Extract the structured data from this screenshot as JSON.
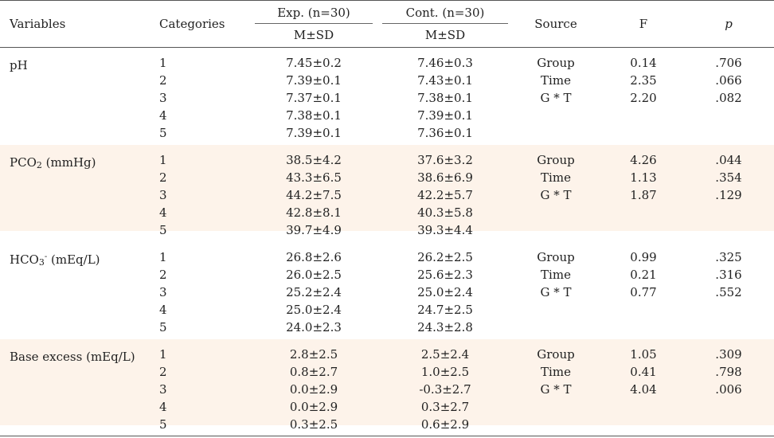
{
  "header": {
    "variables": "Variables",
    "categories": "Categories",
    "exp": "Exp. (n=30)",
    "cont": "Cont. (n=30)",
    "msd_exp": "M±SD",
    "msd_cont": "M±SD",
    "source": "Source",
    "f": "F",
    "p": "p"
  },
  "groups": [
    {
      "var_main": "pH",
      "var_sub": "",
      "var_sup": "",
      "var_rest": "",
      "categories": [
        "1",
        "2",
        "3",
        "4",
        "5"
      ],
      "exp": [
        "7.45±0.2",
        "7.39±0.1",
        "7.37±0.1",
        "7.38±0.1",
        "7.39±0.1"
      ],
      "cont": [
        "7.46±0.3",
        "7.43±0.1",
        "7.38±0.1",
        "7.39±0.1",
        "7.36±0.1"
      ],
      "source": [
        "Group",
        "Time",
        "G * T"
      ],
      "f": [
        "0.14",
        "2.35",
        "2.20"
      ],
      "p": [
        ".706",
        ".066",
        ".082"
      ]
    },
    {
      "var_main": "PCO",
      "var_sub": "2",
      "var_sup": "",
      "var_rest": " (mmHg)",
      "categories": [
        "1",
        "2",
        "3",
        "4",
        "5"
      ],
      "exp": [
        "38.5±4.2",
        "43.3±6.5",
        "44.2±7.5",
        "42.8±8.1",
        "39.7±4.9"
      ],
      "cont": [
        "37.6±3.2",
        "38.6±6.9",
        "42.2±5.7",
        "40.3±5.8",
        "39.3±4.4"
      ],
      "source": [
        "Group",
        "Time",
        "G * T"
      ],
      "f": [
        "4.26",
        "1.13",
        "1.87"
      ],
      "p": [
        ".044",
        ".354",
        ".129"
      ]
    },
    {
      "var_main": "HCO",
      "var_sub": "3",
      "var_sup": "-",
      "var_rest": " (mEq/L)",
      "categories": [
        "1",
        "2",
        "3",
        "4",
        "5"
      ],
      "exp": [
        "26.8±2.6",
        "26.0±2.5",
        "25.2±2.4",
        "25.0±2.4",
        "24.0±2.3"
      ],
      "cont": [
        "26.2±2.5",
        "25.6±2.3",
        "25.0±2.4",
        "24.7±2.5",
        "24.3±2.8"
      ],
      "source": [
        "Group",
        "Time",
        "G * T"
      ],
      "f": [
        "0.99",
        "0.21",
        "0.77"
      ],
      "p": [
        ".325",
        ".316",
        ".552"
      ]
    },
    {
      "var_main": "Base excess (mEq/L)",
      "var_sub": "",
      "var_sup": "",
      "var_rest": "",
      "categories": [
        "1",
        "2",
        "3",
        "4",
        "5"
      ],
      "exp": [
        "2.8±2.5",
        "0.8±2.7",
        "0.0±2.9",
        "0.0±2.9",
        "0.3±2.5"
      ],
      "cont": [
        "2.5±2.4",
        "1.0±2.5",
        "-0.3±2.7",
        "0.3±2.7",
        "0.6±2.9"
      ],
      "source": [
        "Group",
        "Time",
        "G * T"
      ],
      "f": [
        "1.05",
        "0.41",
        "4.04"
      ],
      "p": [
        ".309",
        ".798",
        ".006"
      ]
    }
  ]
}
